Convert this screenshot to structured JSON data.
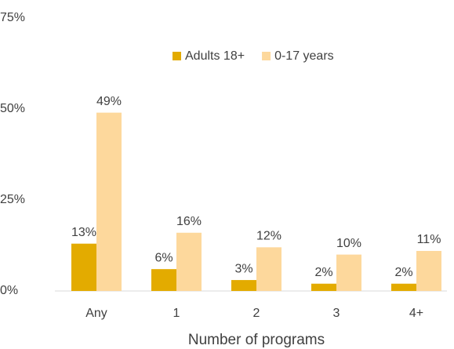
{
  "chart_data": {
    "type": "bar",
    "x_label": "Number of programs",
    "categories": [
      "Any",
      "1",
      "2",
      "3",
      "4+"
    ],
    "series": [
      {
        "name": "Adults 18+",
        "color": "#e3ab00",
        "values": [
          13,
          6,
          3,
          2,
          2
        ],
        "value_labels": [
          "13%",
          "6%",
          "3%",
          "2%",
          "2%"
        ]
      },
      {
        "name": "0-17 years",
        "color": "#fdd89c",
        "values": [
          49,
          16,
          12,
          10,
          11
        ],
        "value_labels": [
          "49%",
          "16%",
          "12%",
          "10%",
          "11%"
        ]
      }
    ],
    "ylim": [
      0,
      75
    ],
    "yticks": [
      {
        "value": 0,
        "label": "0%"
      },
      {
        "value": 25,
        "label": "25%"
      },
      {
        "value": 50,
        "label": "50%"
      },
      {
        "value": 75,
        "label": "75%"
      }
    ],
    "grid": false,
    "legend": "top"
  }
}
